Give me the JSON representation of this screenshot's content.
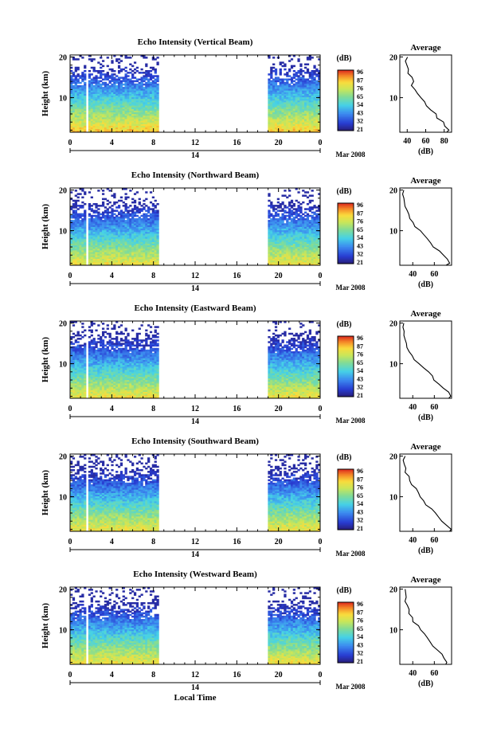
{
  "figure": {
    "xaxis_title": "Local Time",
    "date_label": "Mar 2008",
    "day_label": "14"
  },
  "chart_data": [
    {
      "type": "heatmap",
      "title": "Echo Intensity (Vertical Beam)",
      "ylabel": "Height (km)",
      "x_ticks": [
        "0",
        "4",
        "8",
        "12",
        "16",
        "20",
        "0"
      ],
      "y_ticks": [
        "10",
        "20"
      ],
      "xlim": [
        0,
        24
      ],
      "ylim": [
        1.5,
        20.5
      ],
      "data_gaps_hours": [
        [
          1.5,
          1.8
        ],
        [
          8.6,
          19.0
        ]
      ],
      "colorbar": {
        "unit": "(dB)",
        "ticks": [
          "96",
          "87",
          "76",
          "65",
          "54",
          "43",
          "32",
          "21"
        ]
      },
      "average_profile": {
        "title": "Average",
        "xlabel": "(dB)",
        "x_ticks": [
          "40",
          "60",
          "80"
        ],
        "xlim": [
          32,
          88
        ],
        "ylim": [
          1.5,
          20.5
        ],
        "height_km": [
          1.5,
          2,
          3,
          4,
          5,
          6,
          7,
          8,
          9,
          10,
          11,
          12,
          13,
          14,
          15,
          16,
          17,
          18,
          19,
          20
        ],
        "values_db": [
          82,
          85,
          82,
          78,
          73,
          70,
          66,
          62,
          58,
          54,
          50,
          48,
          46,
          46,
          44,
          42,
          40,
          41,
          39,
          40
        ]
      }
    },
    {
      "type": "heatmap",
      "title": "Echo Intensity (Northward Beam)",
      "ylabel": "Height (km)",
      "x_ticks": [
        "0",
        "4",
        "8",
        "12",
        "16",
        "20",
        "0"
      ],
      "y_ticks": [
        "10",
        "20"
      ],
      "xlim": [
        0,
        24
      ],
      "ylim": [
        1.5,
        20.5
      ],
      "data_gaps_hours": [
        [
          1.5,
          1.8
        ],
        [
          8.6,
          19.0
        ]
      ],
      "colorbar": {
        "unit": "(dB)",
        "ticks": [
          "96",
          "87",
          "76",
          "65",
          "54",
          "43",
          "32",
          "21"
        ]
      },
      "average_profile": {
        "title": "Average",
        "xlabel": "(dB)",
        "x_ticks": [
          "40",
          "60"
        ],
        "xlim": [
          28,
          76
        ],
        "ylim": [
          1.5,
          20.5
        ],
        "height_km": [
          1.5,
          2,
          3,
          4,
          5,
          6,
          7,
          8,
          9,
          10,
          11,
          12,
          13,
          14,
          15,
          16,
          17,
          18,
          19,
          20
        ],
        "values_db": [
          72,
          75,
          72,
          68,
          64,
          60,
          57,
          53,
          50,
          46,
          43,
          40,
          38,
          36,
          34,
          33,
          32,
          33,
          31,
          32
        ]
      }
    },
    {
      "type": "heatmap",
      "title": "Echo Intensity (Eastward Beam)",
      "ylabel": "Height (km)",
      "x_ticks": [
        "0",
        "4",
        "8",
        "12",
        "16",
        "20",
        "0"
      ],
      "y_ticks": [
        "10",
        "20"
      ],
      "xlim": [
        0,
        24
      ],
      "ylim": [
        1.5,
        20.5
      ],
      "data_gaps_hours": [
        [
          1.5,
          1.8
        ],
        [
          8.6,
          19.0
        ]
      ],
      "colorbar": {
        "unit": "(dB)",
        "ticks": [
          "96",
          "87",
          "76",
          "65",
          "54",
          "43",
          "32",
          "21"
        ]
      },
      "average_profile": {
        "title": "Average",
        "xlabel": "(dB)",
        "x_ticks": [
          "40",
          "60"
        ],
        "xlim": [
          28,
          76
        ],
        "ylim": [
          1.5,
          20.5
        ],
        "height_km": [
          1.5,
          2,
          3,
          4,
          5,
          6,
          7,
          8,
          9,
          10,
          11,
          12,
          13,
          14,
          15,
          16,
          17,
          18,
          19,
          20
        ],
        "values_db": [
          73,
          76,
          72,
          68,
          65,
          61,
          57,
          54,
          50,
          46,
          42,
          39,
          37,
          35,
          34,
          33,
          32,
          32,
          31,
          31
        ]
      }
    },
    {
      "type": "heatmap",
      "title": "Echo Intensity (Southward Beam)",
      "ylabel": "Height (km)",
      "x_ticks": [
        "0",
        "4",
        "8",
        "12",
        "16",
        "20",
        "0"
      ],
      "y_ticks": [
        "10",
        "20"
      ],
      "xlim": [
        0,
        24
      ],
      "ylim": [
        1.5,
        20.5
      ],
      "data_gaps_hours": [
        [
          1.5,
          1.8
        ],
        [
          8.6,
          19.0
        ]
      ],
      "colorbar": {
        "unit": "(dB)",
        "ticks": [
          "96",
          "87",
          "76",
          "65",
          "54",
          "43",
          "32",
          "21"
        ]
      },
      "average_profile": {
        "title": "Average",
        "xlabel": "(dB)",
        "x_ticks": [
          "40",
          "60"
        ],
        "xlim": [
          28,
          76
        ],
        "ylim": [
          1.5,
          20.5
        ],
        "height_km": [
          1.5,
          2,
          3,
          4,
          5,
          6,
          7,
          8,
          9,
          10,
          11,
          12,
          13,
          14,
          15,
          16,
          17,
          18,
          19,
          20
        ],
        "values_db": [
          73,
          75,
          72,
          68,
          64,
          60,
          57,
          53,
          50,
          47,
          44,
          42,
          40,
          38,
          36,
          34,
          33,
          32,
          31,
          32
        ]
      }
    },
    {
      "type": "heatmap",
      "title": "Echo Intensity (Westward Beam)",
      "ylabel": "Height (km)",
      "x_ticks": [
        "0",
        "4",
        "8",
        "12",
        "16",
        "20",
        "0"
      ],
      "y_ticks": [
        "10",
        "20"
      ],
      "xlim": [
        0,
        24
      ],
      "ylim": [
        1.5,
        20.5
      ],
      "data_gaps_hours": [
        [
          1.5,
          1.8
        ],
        [
          8.6,
          19.0
        ]
      ],
      "colorbar": {
        "unit": "(dB)",
        "ticks": [
          "96",
          "87",
          "76",
          "65",
          "54",
          "43",
          "32",
          "21"
        ]
      },
      "average_profile": {
        "title": "Average",
        "xlabel": "(dB)",
        "x_ticks": [
          "40",
          "60"
        ],
        "xlim": [
          28,
          76
        ],
        "ylim": [
          1.5,
          20.5
        ],
        "height_km": [
          1.5,
          2,
          3,
          4,
          5,
          6,
          7,
          8,
          9,
          10,
          11,
          12,
          13,
          14,
          15,
          16,
          17,
          18,
          19,
          20
        ],
        "values_db": [
          70,
          72,
          70,
          67,
          63,
          59,
          56,
          53,
          50,
          47,
          44,
          41,
          39,
          37,
          36,
          35,
          34,
          33,
          32,
          33
        ]
      }
    }
  ]
}
